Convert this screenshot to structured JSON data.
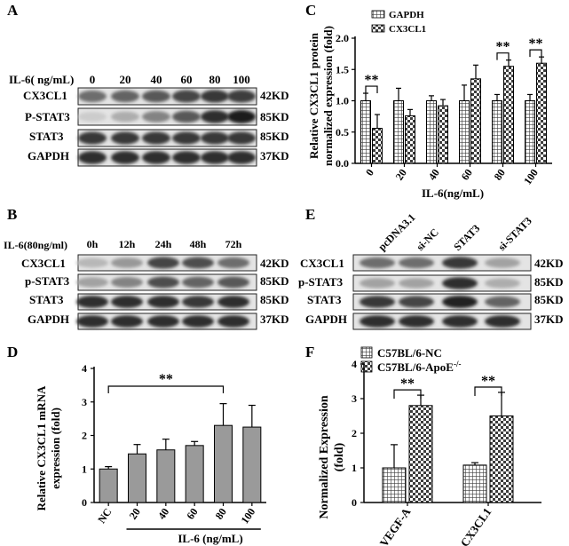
{
  "panels": {
    "A": {
      "letter": "A",
      "treatment_label": "IL-6( ng/mL)",
      "lane_labels": [
        "0",
        "20",
        "40",
        "60",
        "80",
        "100"
      ],
      "rows": [
        {
          "name": "CX3CL1",
          "size": "42KD",
          "intensity": [
            0.55,
            0.6,
            0.65,
            0.75,
            0.8,
            0.78
          ]
        },
        {
          "name": "P-STAT3",
          "size": "85KD",
          "intensity": [
            0.1,
            0.25,
            0.45,
            0.65,
            0.85,
            0.95
          ]
        },
        {
          "name": "STAT3",
          "size": "85KD",
          "intensity": [
            0.8,
            0.8,
            0.8,
            0.8,
            0.8,
            0.8
          ]
        },
        {
          "name": "GAPDH",
          "size": "37KD",
          "intensity": [
            0.85,
            0.85,
            0.85,
            0.85,
            0.85,
            0.85
          ]
        }
      ]
    },
    "B": {
      "letter": "B",
      "treatment_label": "IL-6(80ng/ml)",
      "lane_labels": [
        "0h",
        "12h",
        "24h",
        "48h",
        "72h"
      ],
      "rows": [
        {
          "name": "CX3CL1",
          "size": "42KD",
          "intensity": [
            0.2,
            0.35,
            0.75,
            0.7,
            0.55
          ]
        },
        {
          "name": "p-STAT3",
          "size": "85KD",
          "intensity": [
            0.3,
            0.45,
            0.7,
            0.6,
            0.65
          ]
        },
        {
          "name": "STAT3",
          "size": "85KD",
          "intensity": [
            0.85,
            0.85,
            0.85,
            0.8,
            0.85
          ]
        },
        {
          "name": "GAPDH",
          "size": "37KD",
          "intensity": [
            0.85,
            0.85,
            0.85,
            0.85,
            0.85
          ]
        }
      ]
    },
    "E": {
      "letter": "E",
      "lane_labels": [
        "pcDNA3.1",
        "si-NC",
        "STAT3",
        "si-STAT3"
      ],
      "rows": [
        {
          "name": "CX3CL1",
          "size": "42KD",
          "intensity": [
            0.55,
            0.55,
            0.8,
            0.3
          ]
        },
        {
          "name": "p-STAT3",
          "size": "85KD",
          "intensity": [
            0.3,
            0.3,
            0.85,
            0.25
          ]
        },
        {
          "name": "STAT3",
          "size": "85KD",
          "intensity": [
            0.8,
            0.75,
            0.9,
            0.6
          ]
        },
        {
          "name": "GAPDH",
          "size": "37KD",
          "intensity": [
            0.85,
            0.85,
            0.85,
            0.85
          ]
        }
      ]
    },
    "C_letter": "C",
    "D_letter": "D",
    "F_letter": "F"
  },
  "chart_data": [
    {
      "panel": "C",
      "type": "bar",
      "ylabel": "Relative CX3CL1 protein normalized expression (fold)",
      "ylabel_lines": [
        "Relative CX3CL1 protein",
        "normalized expression (fold)"
      ],
      "xlabel": "IL-6(ng/mL)",
      "categories": [
        "0",
        "20",
        "40",
        "60",
        "80",
        "100"
      ],
      "yticks": [
        "0.0",
        "0.5",
        "1.0",
        "1.5",
        "2.0"
      ],
      "ylim": [
        0,
        2.0
      ],
      "legend_position": "top-left",
      "series": [
        {
          "name": "GAPDH",
          "pattern": "grid",
          "values": [
            1.0,
            1.0,
            1.0,
            1.0,
            1.0,
            1.0
          ],
          "errors": [
            0.12,
            0.2,
            0.08,
            0.25,
            0.1,
            0.1
          ]
        },
        {
          "name": "CX3CL1",
          "pattern": "checker",
          "values": [
            0.56,
            0.76,
            0.92,
            1.35,
            1.55,
            1.6
          ],
          "errors": [
            0.22,
            0.1,
            0.1,
            0.22,
            0.1,
            0.1
          ]
        }
      ],
      "significance": [
        {
          "category_index": 0,
          "label": "**"
        },
        {
          "category_index": 4,
          "label": "**"
        },
        {
          "category_index": 5,
          "label": "**"
        }
      ]
    },
    {
      "panel": "D",
      "type": "bar",
      "ylabel": "Relative CX3CL1 mRNA expression (fold)",
      "ylabel_lines": [
        "Relative CX3CL1 mRNA",
        "expression (fold)"
      ],
      "xlabel": "IL-6 (ng/mL)",
      "categories": [
        "NC",
        "20",
        "40",
        "60",
        "80",
        "100"
      ],
      "yticks": [
        "0",
        "1",
        "2",
        "3",
        "4"
      ],
      "ylim": [
        0,
        4
      ],
      "values": [
        1.0,
        1.45,
        1.57,
        1.7,
        2.3,
        2.25
      ],
      "errors": [
        0.07,
        0.28,
        0.32,
        0.12,
        0.65,
        0.65
      ],
      "significance": [
        {
          "from_index": 0,
          "to_index": 4,
          "label": "**"
        }
      ]
    },
    {
      "panel": "F",
      "type": "bar",
      "ylabel": "Normalized Expression (fold)",
      "ylabel_lines": [
        "Normalized Expression",
        "(fold)"
      ],
      "categories": [
        "VEGF-A",
        "CX3CL1"
      ],
      "yticks": [
        "0",
        "1",
        "2",
        "3",
        "4"
      ],
      "ylim": [
        0,
        4
      ],
      "legend_position": "top-left",
      "series": [
        {
          "name": "C57BL/6-NC",
          "pattern": "grid",
          "values": [
            1.0,
            1.08
          ],
          "errors": [
            0.67,
            0.07
          ]
        },
        {
          "name": "C57BL/6-ApoE",
          "name_superscript": "-/-",
          "pattern": "checker",
          "values": [
            2.8,
            2.5
          ],
          "errors": [
            0.3,
            0.68
          ]
        }
      ],
      "significance": [
        {
          "category_index": 0,
          "label": "**"
        },
        {
          "category_index": 1,
          "label": "**"
        }
      ]
    }
  ]
}
